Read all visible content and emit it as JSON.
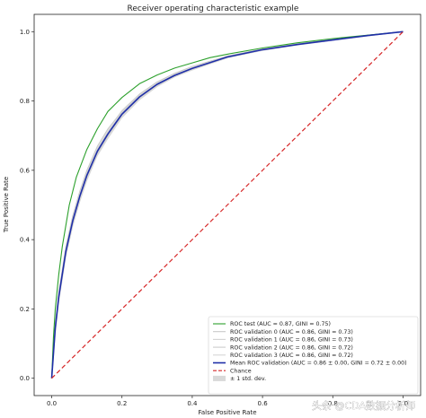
{
  "chart_data": {
    "type": "line",
    "title": "Receiver operating characteristic example",
    "xlabel": "False Positive Rate",
    "ylabel": "True Positive Rate",
    "xlim": [
      -0.05,
      1.05
    ],
    "ylim": [
      -0.05,
      1.05
    ],
    "xticks": [
      "0.0",
      "0.2",
      "0.4",
      "0.6",
      "0.8",
      "1.0"
    ],
    "yticks": [
      "0.0",
      "0.2",
      "0.4",
      "0.6",
      "0.8",
      "1.0"
    ],
    "grid": false,
    "legend_position": "lower-right",
    "series": [
      {
        "name": "ROC test (AUC = 0.87,  GINI = 0.75)",
        "color": "#2ca02c",
        "x": [
          0,
          0.005,
          0.01,
          0.02,
          0.03,
          0.05,
          0.07,
          0.1,
          0.13,
          0.16,
          0.2,
          0.25,
          0.3,
          0.35,
          0.4,
          0.45,
          0.5,
          0.6,
          0.7,
          0.8,
          0.9,
          1.0
        ],
        "y": [
          0,
          0.12,
          0.2,
          0.3,
          0.38,
          0.5,
          0.58,
          0.66,
          0.72,
          0.77,
          0.81,
          0.85,
          0.875,
          0.895,
          0.91,
          0.925,
          0.935,
          0.953,
          0.968,
          0.98,
          0.99,
          1.0
        ]
      },
      {
        "name": "ROC validation 0 (AUC = 0.86,  GINI = 0.73)",
        "color": "#c8c8c8",
        "x": [
          0,
          0.01,
          0.02,
          0.04,
          0.06,
          0.08,
          0.1,
          0.13,
          0.16,
          0.2,
          0.25,
          0.3,
          0.35,
          0.4,
          0.5,
          0.6,
          0.7,
          0.8,
          0.9,
          1.0
        ],
        "y": [
          0,
          0.16,
          0.25,
          0.38,
          0.47,
          0.54,
          0.6,
          0.67,
          0.72,
          0.77,
          0.82,
          0.855,
          0.88,
          0.9,
          0.93,
          0.95,
          0.965,
          0.978,
          0.99,
          1.0
        ]
      },
      {
        "name": "ROC validation 1 (AUC = 0.86,  GINI = 0.73)",
        "color": "#d2d2d2",
        "x": [
          0,
          0.01,
          0.02,
          0.04,
          0.06,
          0.08,
          0.1,
          0.13,
          0.16,
          0.2,
          0.25,
          0.3,
          0.35,
          0.4,
          0.5,
          0.6,
          0.7,
          0.8,
          0.9,
          1.0
        ],
        "y": [
          0,
          0.15,
          0.24,
          0.37,
          0.46,
          0.53,
          0.59,
          0.66,
          0.71,
          0.765,
          0.815,
          0.85,
          0.875,
          0.895,
          0.928,
          0.948,
          0.964,
          0.977,
          0.989,
          1.0
        ]
      },
      {
        "name": "ROC validation 2 (AUC = 0.86,  GINI = 0.72)",
        "color": "#cccccc",
        "x": [
          0,
          0.01,
          0.02,
          0.04,
          0.06,
          0.08,
          0.1,
          0.13,
          0.16,
          0.2,
          0.25,
          0.3,
          0.35,
          0.4,
          0.5,
          0.6,
          0.7,
          0.8,
          0.9,
          1.0
        ],
        "y": [
          0,
          0.14,
          0.23,
          0.36,
          0.45,
          0.52,
          0.58,
          0.65,
          0.7,
          0.76,
          0.81,
          0.846,
          0.872,
          0.893,
          0.926,
          0.947,
          0.963,
          0.976,
          0.988,
          1.0
        ]
      },
      {
        "name": "ROC validation 3 (AUC = 0.86,  GINI = 0.72)",
        "color": "#d6d6d6",
        "x": [
          0,
          0.01,
          0.02,
          0.04,
          0.06,
          0.08,
          0.1,
          0.13,
          0.16,
          0.2,
          0.25,
          0.3,
          0.35,
          0.4,
          0.5,
          0.6,
          0.7,
          0.8,
          0.9,
          1.0
        ],
        "y": [
          0,
          0.13,
          0.22,
          0.35,
          0.44,
          0.51,
          0.57,
          0.645,
          0.695,
          0.755,
          0.805,
          0.843,
          0.87,
          0.891,
          0.925,
          0.946,
          0.962,
          0.975,
          0.988,
          1.0
        ]
      },
      {
        "name": "Mean ROC validation (AUC = 0.86 ± 0.00, GINI = 0.72 ± 0.00)",
        "color": "#1f2fa8",
        "x": [
          0,
          0.01,
          0.02,
          0.04,
          0.06,
          0.08,
          0.1,
          0.13,
          0.16,
          0.2,
          0.25,
          0.3,
          0.35,
          0.4,
          0.5,
          0.6,
          0.7,
          0.8,
          0.9,
          1.0
        ],
        "y": [
          0,
          0.145,
          0.235,
          0.365,
          0.455,
          0.525,
          0.585,
          0.655,
          0.705,
          0.762,
          0.812,
          0.848,
          0.874,
          0.894,
          0.927,
          0.948,
          0.963,
          0.976,
          0.989,
          1.0
        ]
      },
      {
        "name": "Chance",
        "color": "#d62728",
        "dashed": true,
        "x": [
          0,
          1
        ],
        "y": [
          0,
          1
        ]
      }
    ],
    "std_band": {
      "name": "± 1 std. dev.",
      "color": "#bfbfbf",
      "x": [
        0,
        0.01,
        0.02,
        0.04,
        0.06,
        0.08,
        0.1,
        0.13,
        0.16,
        0.2,
        0.25,
        0.3,
        0.35,
        0.4,
        0.5,
        0.6,
        0.7,
        0.8,
        0.9,
        1.0
      ],
      "upper": [
        0,
        0.16,
        0.25,
        0.38,
        0.47,
        0.54,
        0.6,
        0.67,
        0.72,
        0.775,
        0.822,
        0.856,
        0.88,
        0.9,
        0.931,
        0.951,
        0.966,
        0.978,
        0.99,
        1.0
      ],
      "lower": [
        0,
        0.13,
        0.22,
        0.35,
        0.44,
        0.51,
        0.57,
        0.64,
        0.69,
        0.75,
        0.802,
        0.84,
        0.868,
        0.888,
        0.923,
        0.945,
        0.96,
        0.974,
        0.987,
        1.0
      ]
    }
  },
  "watermark": {
    "text": "头条 @CDA数据分析师"
  }
}
